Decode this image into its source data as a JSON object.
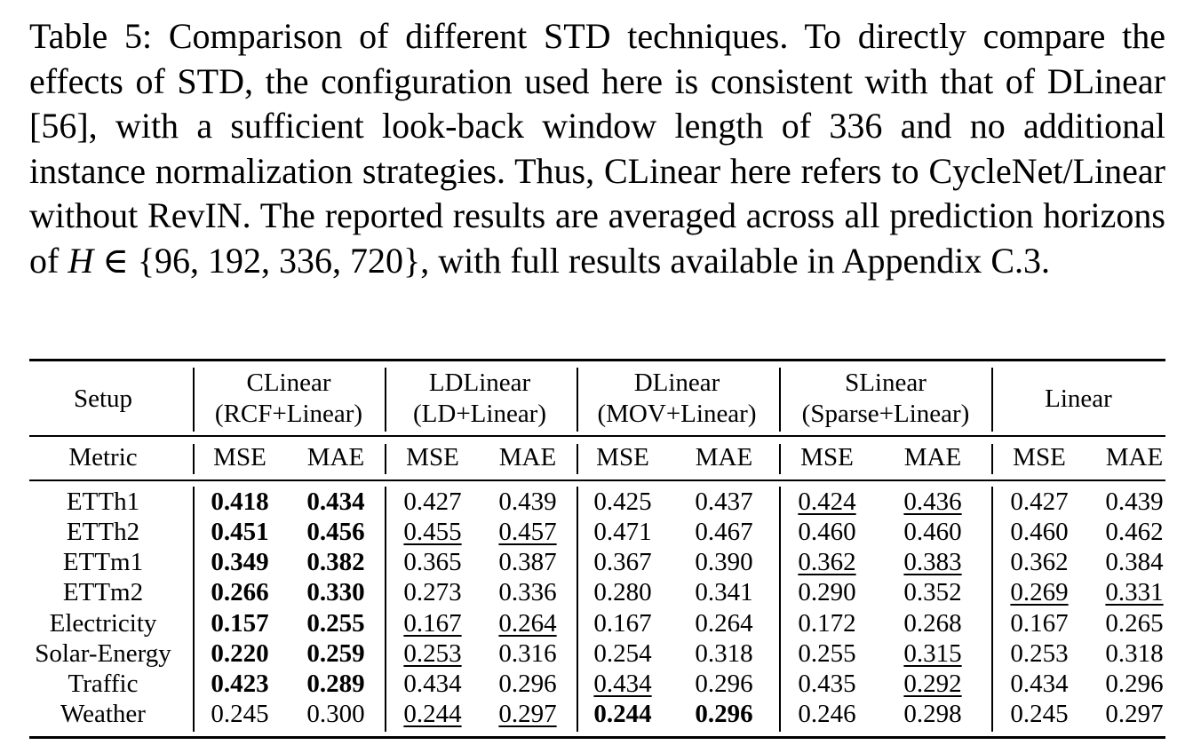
{
  "caption": {
    "part1": "Table 5: Comparison of different STD techniques. To directly compare the effects of STD, the configuration used here is consistent with that of DLinear [56], with a sufficient look-back window length of 336 and no additional instance normalization strategies. Thus, CLinear here refers to CycleNet/Linear without RevIN. The reported results are averaged across all prediction horizons of ",
    "math_var": "H",
    "math_rest": " ∈ {96, 192, 336, 720}",
    "part2": ", with full results available in Appendix C.3."
  },
  "table": {
    "setup_label": "Setup",
    "metric_label": "Metric",
    "groups": [
      {
        "name": "CLinear",
        "sub": "(RCF+Linear)"
      },
      {
        "name": "LDLinear",
        "sub": "(LD+Linear)"
      },
      {
        "name": "DLinear",
        "sub": "(MOV+Linear)"
      },
      {
        "name": "SLinear",
        "sub": "(Sparse+Linear)"
      },
      {
        "name": "Linear",
        "sub": ""
      }
    ],
    "metrics": [
      "MSE",
      "MAE",
      "MSE",
      "MAE",
      "MSE",
      "MAE",
      "MSE",
      "MAE",
      "MSE",
      "MAE"
    ],
    "rows": [
      {
        "name": "ETTh1",
        "values": [
          "0.418",
          "0.434",
          "0.427",
          "0.439",
          "0.425",
          "0.437",
          "0.424",
          "0.436",
          "0.427",
          "0.439"
        ],
        "bold": [
          0,
          1
        ],
        "underline": [
          6,
          7
        ]
      },
      {
        "name": "ETTh2",
        "values": [
          "0.451",
          "0.456",
          "0.455",
          "0.457",
          "0.471",
          "0.467",
          "0.460",
          "0.460",
          "0.460",
          "0.462"
        ],
        "bold": [
          0,
          1
        ],
        "underline": [
          2,
          3
        ]
      },
      {
        "name": "ETTm1",
        "values": [
          "0.349",
          "0.382",
          "0.365",
          "0.387",
          "0.367",
          "0.390",
          "0.362",
          "0.383",
          "0.362",
          "0.384"
        ],
        "bold": [
          0,
          1
        ],
        "underline": [
          6,
          7
        ]
      },
      {
        "name": "ETTm2",
        "values": [
          "0.266",
          "0.330",
          "0.273",
          "0.336",
          "0.280",
          "0.341",
          "0.290",
          "0.352",
          "0.269",
          "0.331"
        ],
        "bold": [
          0,
          1
        ],
        "underline": [
          8,
          9
        ]
      },
      {
        "name": "Electricity",
        "values": [
          "0.157",
          "0.255",
          "0.167",
          "0.264",
          "0.167",
          "0.264",
          "0.172",
          "0.268",
          "0.167",
          "0.265"
        ],
        "bold": [
          0,
          1
        ],
        "underline": [
          2,
          3
        ]
      },
      {
        "name": "Solar-Energy",
        "values": [
          "0.220",
          "0.259",
          "0.253",
          "0.316",
          "0.254",
          "0.318",
          "0.255",
          "0.315",
          "0.253",
          "0.318"
        ],
        "bold": [
          0,
          1
        ],
        "underline": [
          2,
          7
        ]
      },
      {
        "name": "Traffic",
        "values": [
          "0.423",
          "0.289",
          "0.434",
          "0.296",
          "0.434",
          "0.296",
          "0.435",
          "0.292",
          "0.434",
          "0.296"
        ],
        "bold": [
          0,
          1
        ],
        "underline": [
          4,
          7
        ]
      },
      {
        "name": "Weather",
        "values": [
          "0.245",
          "0.300",
          "0.244",
          "0.297",
          "0.244",
          "0.296",
          "0.246",
          "0.298",
          "0.245",
          "0.297"
        ],
        "bold": [
          4,
          5
        ],
        "underline": [
          2,
          3
        ]
      }
    ]
  }
}
